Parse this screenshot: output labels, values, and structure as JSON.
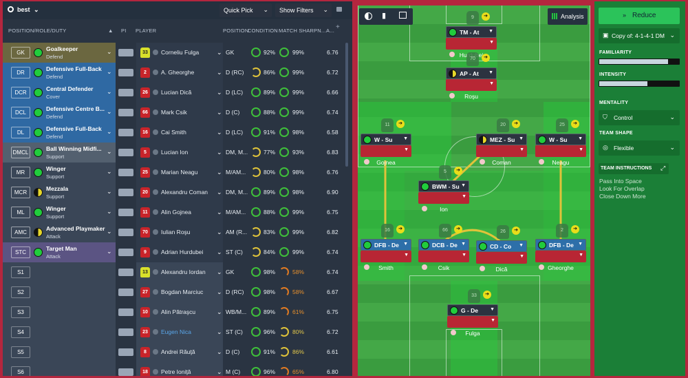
{
  "left_panel": {
    "view_name": "best",
    "quick_pick_label": "Quick Pick",
    "show_filters_label": "Show Filters",
    "headers": {
      "position": "POSITION/ROLE/DUTY",
      "pi": "PI",
      "player": "PLAYER",
      "position_col": "POSITION",
      "condition": "CONDITION",
      "match_sharpness": "MATCH SHARPN...",
      "ability": "A..."
    },
    "rows": [
      {
        "code": "GK",
        "role": "Goalkeeper",
        "duty": "Defend",
        "dot": "full",
        "role_color": "#6b6740",
        "num": "33",
        "gk": true,
        "name": "Corneliu Fulga",
        "pos": "GK",
        "cond": "92%",
        "sharp": "99%",
        "cring": "g",
        "sring": "g",
        "rating": "6.76"
      },
      {
        "code": "DR",
        "role": "Defensive Full-Back",
        "duty": "Defend",
        "dot": "full",
        "role_color": "#2f69a3",
        "num": "2",
        "gk": false,
        "name": "A. Gheorghe",
        "pos": "D (RC)",
        "cond": "86%",
        "sharp": "99%",
        "cring": "y",
        "sring": "g",
        "rating": "6.72"
      },
      {
        "code": "DCR",
        "role": "Central Defender",
        "duty": "Cover",
        "dot": "full",
        "role_color": "#2f69a3",
        "num": "26",
        "gk": false,
        "name": "Lucian Dică",
        "pos": "D (LC)",
        "cond": "89%",
        "sharp": "99%",
        "cring": "g",
        "sring": "g",
        "rating": "6.66"
      },
      {
        "code": "DCL",
        "role": "Defensive Centre B...",
        "duty": "Defend",
        "dot": "full",
        "role_color": "#2f69a3",
        "num": "66",
        "gk": false,
        "name": "Mark Csik",
        "pos": "D (C)",
        "cond": "88%",
        "sharp": "99%",
        "cring": "g",
        "sring": "g",
        "rating": "6.74"
      },
      {
        "code": "DL",
        "role": "Defensive Full-Back",
        "duty": "Defend",
        "dot": "full",
        "role_color": "#2f69a3",
        "num": "16",
        "gk": false,
        "name": "Cai Smith",
        "pos": "D (LC)",
        "cond": "91%",
        "sharp": "98%",
        "cring": "g",
        "sring": "g",
        "rating": "6.58"
      },
      {
        "code": "DMCL",
        "role": "Ball Winning Midfi...",
        "duty": "Support",
        "dot": "full",
        "role_color": "#53606f",
        "num": "5",
        "gk": false,
        "name": "Lucian Ion",
        "pos": "DM, M...",
        "cond": "77%",
        "sharp": "93%",
        "cring": "y",
        "sring": "g",
        "rating": "6.83"
      },
      {
        "code": "MR",
        "role": "Winger",
        "duty": "Support",
        "dot": "full",
        "role_color": "#3a4657",
        "num": "25",
        "gk": false,
        "name": "Marian Neagu",
        "pos": "M/AM...",
        "cond": "80%",
        "sharp": "98%",
        "cring": "y",
        "sring": "g",
        "rating": "6.76"
      },
      {
        "code": "MCR",
        "role": "Mezzala",
        "duty": "Support",
        "dot": "half",
        "role_color": "#3a4657",
        "num": "20",
        "gk": false,
        "name": "Alexandru Coman",
        "pos": "DM, M...",
        "cond": "89%",
        "sharp": "98%",
        "cring": "g",
        "sring": "g",
        "rating": "6.90"
      },
      {
        "code": "ML",
        "role": "Winger",
        "duty": "Support",
        "dot": "full",
        "role_color": "#3a4657",
        "num": "11",
        "gk": false,
        "name": "Alin Gojnea",
        "pos": "M/AM...",
        "cond": "88%",
        "sharp": "99%",
        "cring": "g",
        "sring": "g",
        "rating": "6.75"
      },
      {
        "code": "AMC",
        "role": "Advanced Playmaker",
        "duty": "Attack",
        "dot": "half",
        "role_color": "#3a4657",
        "num": "70",
        "gk": false,
        "name": "Iulian Roşu",
        "pos": "AM (R...",
        "cond": "83%",
        "sharp": "99%",
        "cring": "y",
        "sring": "g",
        "rating": "6.82"
      },
      {
        "code": "STC",
        "role": "Target Man",
        "duty": "Attack",
        "dot": "full",
        "role_color": "#5b5483",
        "num": "9",
        "gk": false,
        "name": "Adrian Hurdubei",
        "pos": "ST (C)",
        "cond": "84%",
        "sharp": "99%",
        "cring": "y",
        "sring": "g",
        "rating": "6.74"
      }
    ],
    "subs": [
      {
        "code": "S1",
        "num": "13",
        "gk": true,
        "name": "Alexandru Iordan",
        "link": false,
        "pos": "GK",
        "cond": "98%",
        "sharp": "58%",
        "cring": "g",
        "sring": "o",
        "rating": "6.74"
      },
      {
        "code": "S2",
        "num": "27",
        "gk": false,
        "name": "Bogdan Marciuc",
        "link": false,
        "pos": "D (RC)",
        "cond": "98%",
        "sharp": "58%",
        "cring": "g",
        "sring": "o",
        "rating": "6.67"
      },
      {
        "code": "S3",
        "num": "10",
        "gk": false,
        "name": "Alin Pătraşcu",
        "link": false,
        "pos": "WB/M...",
        "cond": "89%",
        "sharp": "61%",
        "cring": "g",
        "sring": "o",
        "rating": "6.75"
      },
      {
        "code": "S4",
        "num": "23",
        "gk": false,
        "name": "Eugen Nica",
        "link": true,
        "pos": "ST (C)",
        "cond": "96%",
        "sharp": "80%",
        "cring": "g",
        "sring": "y",
        "rating": "6.72"
      },
      {
        "code": "S5",
        "num": "8",
        "gk": false,
        "name": "Andrei Răuţă",
        "link": false,
        "pos": "D (C)",
        "cond": "91%",
        "sharp": "86%",
        "cring": "g",
        "sring": "y",
        "rating": "6.61"
      },
      {
        "code": "S6",
        "num": "18",
        "gk": false,
        "name": "Petre Ioniţă",
        "link": false,
        "pos": "M (C)",
        "cond": "96%",
        "sharp": "65%",
        "cring": "g",
        "sring": "o",
        "rating": "6.80"
      }
    ]
  },
  "pitch": {
    "analysis_label": "Analysis",
    "cards": [
      {
        "role": "TM - At",
        "name": "Hurdubei",
        "num": "9",
        "blue": false,
        "dot": "full"
      },
      {
        "role": "AP - At",
        "name": "Roşu",
        "num": "70",
        "blue": false,
        "dot": "half"
      },
      {
        "role": "W - Su",
        "name": "Gojnea",
        "num": "11",
        "blue": false,
        "dot": "full"
      },
      {
        "role": "MEZ - Su",
        "name": "Coman",
        "num": "20",
        "blue": false,
        "dot": "half"
      },
      {
        "role": "W - Su",
        "name": "Neagu",
        "num": "25",
        "blue": false,
        "dot": "full"
      },
      {
        "role": "BWM - Su",
        "name": "Ion",
        "num": "5",
        "blue": false,
        "dot": "full"
      },
      {
        "role": "DFB - De",
        "name": "Smith",
        "num": "16",
        "blue": true,
        "dot": "full"
      },
      {
        "role": "DCB - De",
        "name": "Csik",
        "num": "66",
        "blue": true,
        "dot": "full"
      },
      {
        "role": "CD - Co",
        "name": "Dică",
        "num": "26",
        "blue": true,
        "dot": "full"
      },
      {
        "role": "DFB - De",
        "name": "Gheorghe",
        "num": "2",
        "blue": true,
        "dot": "full"
      },
      {
        "role": "G - De",
        "name": "Fulga",
        "num": "33",
        "blue": false,
        "dot": "full"
      }
    ]
  },
  "right_panel": {
    "reduce_label": "Reduce",
    "tactic_name": "Copy of: 4-1-4-1 DM",
    "familiarity_label": "FAMILIARITY",
    "familiarity_value": 0.86,
    "intensity_label": "INTENSITY",
    "intensity_value": 0.6,
    "mentality_label": "MENTALITY",
    "mentality_value": "Control",
    "team_shape_label": "TEAM SHAPE",
    "team_shape_value": "Flexible",
    "team_instructions_label": "TEAM INSTRUCTIONS",
    "instructions": [
      "Pass Into Space",
      "Look For Overlap",
      "Close Down More"
    ]
  }
}
